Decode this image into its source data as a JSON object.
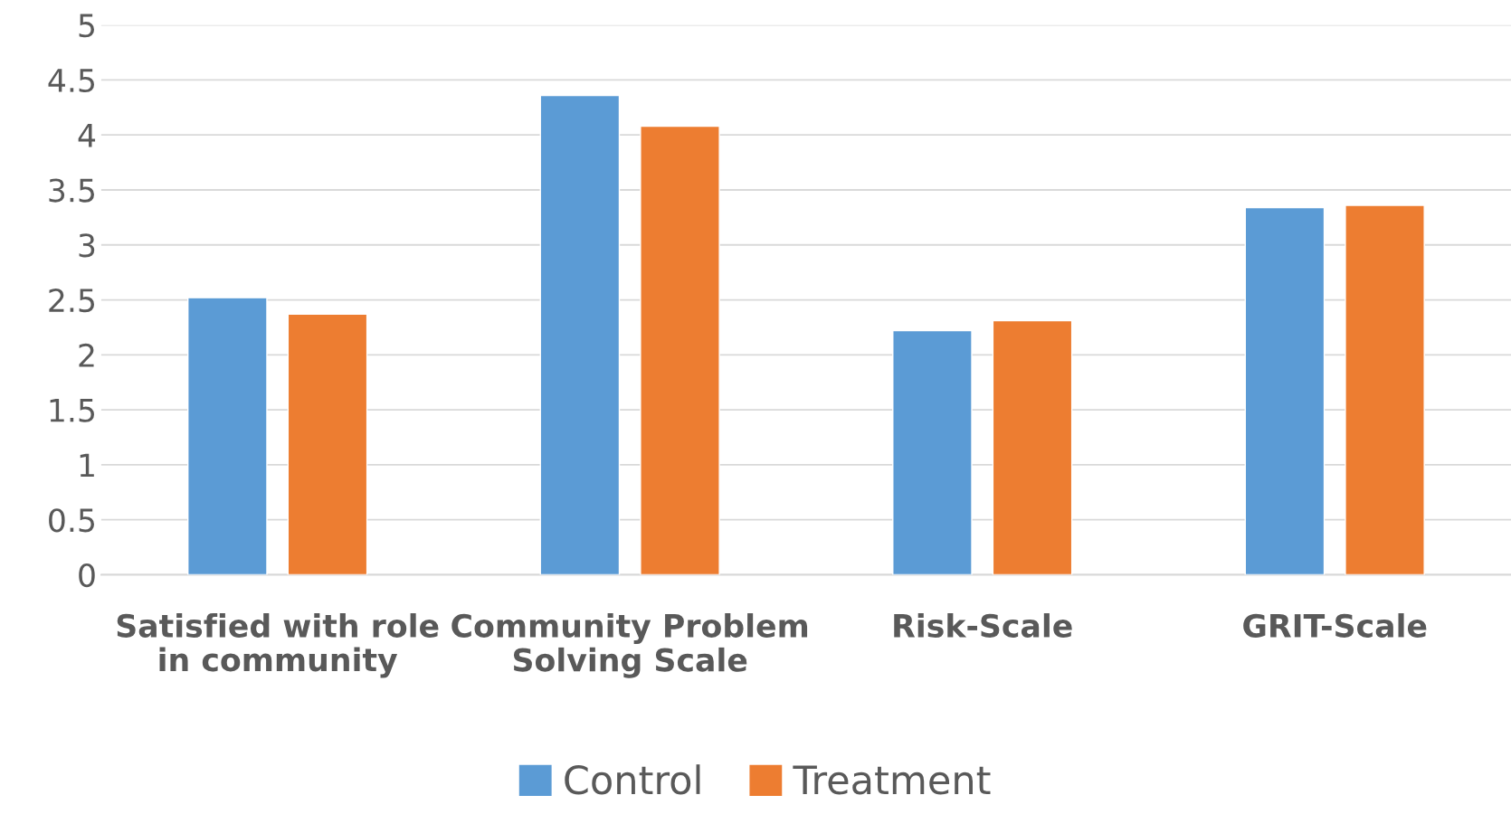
{
  "chart_data": {
    "type": "bar",
    "categories": [
      "Satisfied with role in community",
      "Community Problem Solving Scale",
      "Risk-Scale",
      "GRIT-Scale"
    ],
    "series": [
      {
        "name": "Control",
        "color": "#5b9bd5",
        "values": [
          2.52,
          4.36,
          2.22,
          3.34
        ]
      },
      {
        "name": "Treatment",
        "color": "#ed7d31",
        "values": [
          2.37,
          4.08,
          2.31,
          3.36
        ]
      }
    ],
    "ylim": [
      0,
      5
    ],
    "yticks": [
      0,
      0.5,
      1,
      1.5,
      2,
      2.5,
      3,
      3.5,
      4,
      4.5,
      5
    ],
    "grid": "y",
    "legend": "bottom"
  }
}
